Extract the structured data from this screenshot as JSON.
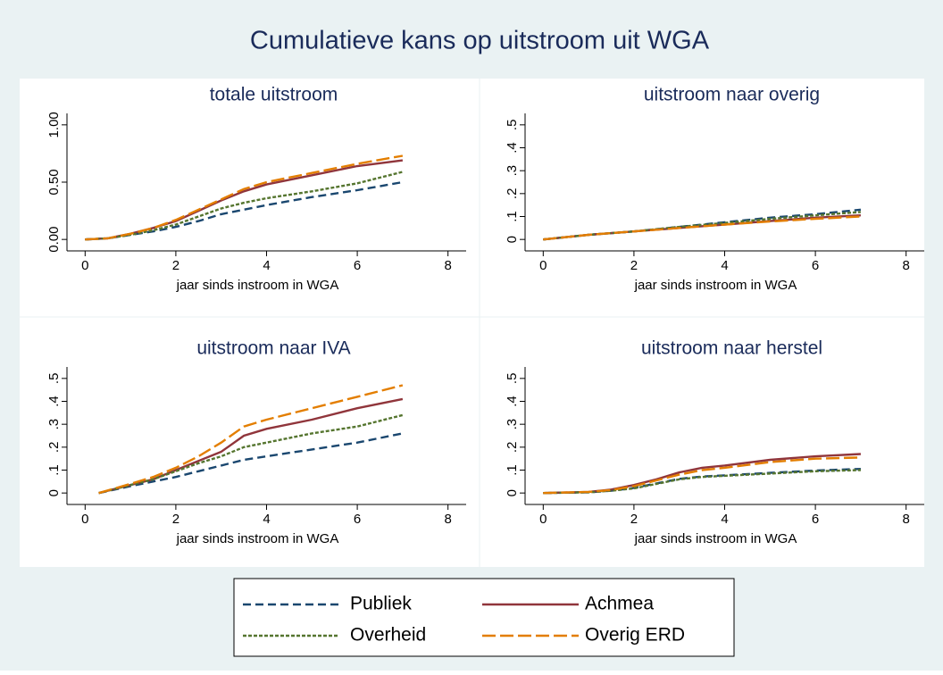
{
  "title": "Cumulatieve kans op uitstroom uit WGA",
  "chart_data": [
    {
      "type": "line",
      "title": "totale uitstroom",
      "xlabel": "jaar sinds instroom in WGA",
      "xlim": [
        -0.4,
        8.4
      ],
      "xticks": [
        0,
        2,
        4,
        6,
        8
      ],
      "ylim": [
        -0.1,
        1.1
      ],
      "yticks": [
        {
          "value": 0,
          "label": "0.00"
        },
        {
          "value": 0.5,
          "label": "0.50"
        },
        {
          "value": 1,
          "label": "1.00"
        }
      ],
      "x": [
        0,
        0.5,
        1,
        1.5,
        2,
        2.5,
        3,
        3.5,
        4,
        5,
        6,
        7
      ],
      "series": [
        {
          "name": "Publiek",
          "color": "#1a476f",
          "dash": "9,5",
          "values": [
            0,
            0.01,
            0.04,
            0.07,
            0.11,
            0.16,
            0.22,
            0.26,
            0.3,
            0.37,
            0.43,
            0.5
          ]
        },
        {
          "name": "Achmea",
          "color": "#90353b",
          "dash": "none",
          "values": [
            0,
            0.01,
            0.05,
            0.1,
            0.16,
            0.25,
            0.34,
            0.42,
            0.48,
            0.56,
            0.64,
            0.69
          ]
        },
        {
          "name": "Overheid",
          "color": "#55752f",
          "dash": "4,2",
          "values": [
            0,
            0.01,
            0.04,
            0.08,
            0.13,
            0.2,
            0.27,
            0.32,
            0.36,
            0.42,
            0.49,
            0.59
          ]
        },
        {
          "name": "Overig ERD",
          "color": "#e37e00",
          "dash": "15,5",
          "values": [
            0,
            0.01,
            0.05,
            0.1,
            0.17,
            0.26,
            0.35,
            0.44,
            0.5,
            0.58,
            0.66,
            0.73
          ]
        }
      ]
    },
    {
      "type": "line",
      "title": "uitstroom naar overig",
      "xlabel": "jaar sinds instroom in WGA",
      "xlim": [
        -0.4,
        8.4
      ],
      "xticks": [
        0,
        2,
        4,
        6,
        8
      ],
      "ylim": [
        -0.05,
        0.55
      ],
      "yticks": [
        0,
        {
          "value": 0.1,
          "label": ".1"
        },
        {
          "value": 0.2,
          "label": ".2"
        },
        {
          "value": 0.3,
          "label": ".3"
        },
        {
          "value": 0.4,
          "label": ".4"
        },
        {
          "value": 0.5,
          "label": ".5"
        }
      ],
      "x": [
        0,
        1,
        2,
        3,
        4,
        5,
        6,
        7
      ],
      "series": [
        {
          "name": "Publiek",
          "color": "#1a476f",
          "dash": "9,5",
          "values": [
            0,
            0.02,
            0.035,
            0.055,
            0.075,
            0.095,
            0.11,
            0.13
          ]
        },
        {
          "name": "Achmea",
          "color": "#90353b",
          "dash": "none",
          "values": [
            0,
            0.02,
            0.035,
            0.05,
            0.065,
            0.08,
            0.095,
            0.105
          ]
        },
        {
          "name": "Overheid",
          "color": "#55752f",
          "dash": "4,2",
          "values": [
            0,
            0.02,
            0.035,
            0.055,
            0.072,
            0.09,
            0.105,
            0.12
          ]
        },
        {
          "name": "Overig ERD",
          "color": "#e37e00",
          "dash": "15,5",
          "values": [
            0,
            0.02,
            0.035,
            0.05,
            0.065,
            0.078,
            0.09,
            0.1
          ]
        }
      ]
    },
    {
      "type": "line",
      "title": "uitstroom naar IVA",
      "xlabel": "jaar sinds instroom in WGA",
      "xlim": [
        -0.4,
        8.4
      ],
      "xticks": [
        0,
        2,
        4,
        6,
        8
      ],
      "ylim": [
        -0.05,
        0.55
      ],
      "yticks": [
        0,
        {
          "value": 0.1,
          "label": ".1"
        },
        {
          "value": 0.2,
          "label": ".2"
        },
        {
          "value": 0.3,
          "label": ".3"
        },
        {
          "value": 0.4,
          "label": ".4"
        },
        {
          "value": 0.5,
          "label": ".5"
        }
      ],
      "x": [
        0.3,
        1,
        1.5,
        2,
        2.5,
        3,
        3.5,
        4,
        5,
        6,
        7
      ],
      "series": [
        {
          "name": "Publiek",
          "color": "#1a476f",
          "dash": "9,5",
          "values": [
            0,
            0.03,
            0.05,
            0.07,
            0.095,
            0.12,
            0.145,
            0.16,
            0.19,
            0.22,
            0.26
          ]
        },
        {
          "name": "Achmea",
          "color": "#90353b",
          "dash": "none",
          "values": [
            0,
            0.035,
            0.06,
            0.1,
            0.14,
            0.18,
            0.25,
            0.28,
            0.32,
            0.37,
            0.41
          ]
        },
        {
          "name": "Overheid",
          "color": "#55752f",
          "dash": "4,2",
          "values": [
            0,
            0.035,
            0.06,
            0.095,
            0.13,
            0.16,
            0.2,
            0.22,
            0.26,
            0.29,
            0.34
          ]
        },
        {
          "name": "Overig ERD",
          "color": "#e37e00",
          "dash": "15,5",
          "values": [
            0,
            0.04,
            0.07,
            0.11,
            0.16,
            0.22,
            0.29,
            0.32,
            0.37,
            0.42,
            0.47
          ]
        }
      ]
    },
    {
      "type": "line",
      "title": "uitstroom naar herstel",
      "xlabel": "jaar sinds instroom in WGA",
      "xlim": [
        -0.4,
        8.4
      ],
      "xticks": [
        0,
        2,
        4,
        6,
        8
      ],
      "ylim": [
        -0.05,
        0.55
      ],
      "yticks": [
        0,
        {
          "value": 0.1,
          "label": ".1"
        },
        {
          "value": 0.2,
          "label": ".2"
        },
        {
          "value": 0.3,
          "label": ".3"
        },
        {
          "value": 0.4,
          "label": ".4"
        },
        {
          "value": 0.5,
          "label": ".5"
        }
      ],
      "x": [
        0,
        1,
        1.5,
        2,
        2.5,
        3,
        3.5,
        4,
        5,
        6,
        7
      ],
      "series": [
        {
          "name": "Publiek",
          "color": "#1a476f",
          "dash": "9,5",
          "values": [
            0,
            0.003,
            0.01,
            0.022,
            0.042,
            0.062,
            0.072,
            0.077,
            0.088,
            0.098,
            0.105
          ]
        },
        {
          "name": "Achmea",
          "color": "#90353b",
          "dash": "none",
          "values": [
            0,
            0.005,
            0.015,
            0.035,
            0.06,
            0.09,
            0.11,
            0.12,
            0.145,
            0.16,
            0.17
          ]
        },
        {
          "name": "Overheid",
          "color": "#55752f",
          "dash": "4,2",
          "values": [
            0,
            0.003,
            0.01,
            0.02,
            0.04,
            0.06,
            0.07,
            0.075,
            0.085,
            0.095,
            0.1
          ]
        },
        {
          "name": "Overig ERD",
          "color": "#e37e00",
          "dash": "15,5",
          "values": [
            0,
            0.005,
            0.013,
            0.03,
            0.055,
            0.08,
            0.1,
            0.11,
            0.135,
            0.15,
            0.155
          ]
        }
      ]
    }
  ]
}
